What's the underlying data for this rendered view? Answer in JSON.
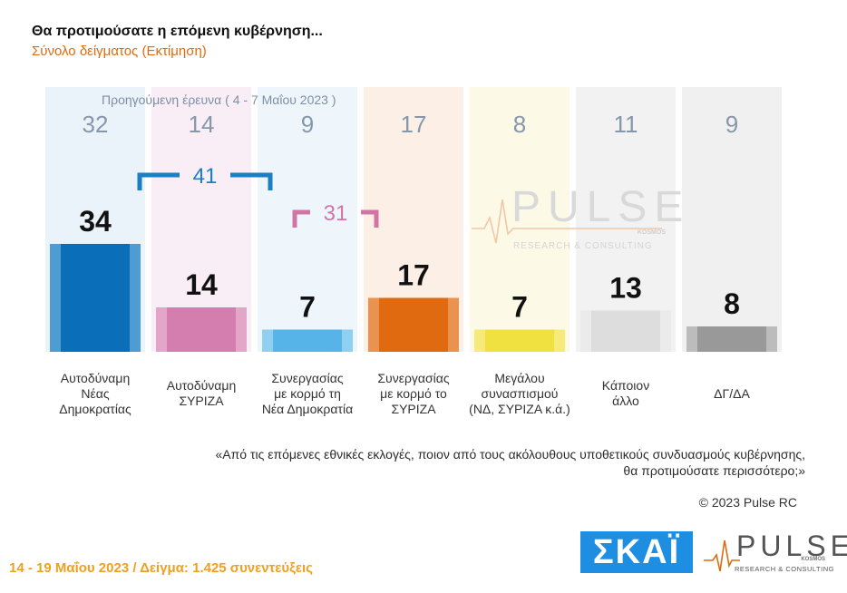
{
  "header": {
    "title": "Θα προτιμούσατε η επόμενη κυβέρνηση...",
    "subtitle": "Σύνολο δείγματος  (Εκτίμηση)"
  },
  "colors": {
    "accent_orange": "#e06a10",
    "footer_orange": "#f0a020",
    "bracket_blue": "#1a7fc4",
    "bracket_pink": "#d275a6",
    "skai_blue": "#1d8ee2"
  },
  "chart_data": {
    "type": "bar",
    "previous_label": "Προηγούμενη έρευνα  ( 4 - 7 Μαΐου  2023 )",
    "categories": [
      [
        "Αυτοδύναμη",
        "Νέας",
        "Δημοκρατίας"
      ],
      [
        "Αυτοδύναμη",
        "ΣΥΡΙΖΑ"
      ],
      [
        "Συνεργασίας",
        "με κορμό τη",
        "Νέα Δημοκρατία"
      ],
      [
        "Συνεργασίας",
        "με κορμό το",
        "ΣΥΡΙΖΑ"
      ],
      [
        "Μεγάλου",
        "συνασπισμού",
        "(ΝΔ, ΣΥΡΙΖΑ κ.ά.)"
      ],
      [
        "Κάποιον",
        "άλλο"
      ],
      [
        "ΔΓ/ΔΑ"
      ]
    ],
    "values": [
      34,
      14,
      7,
      17,
      7,
      13,
      8
    ],
    "previous_values": [
      32,
      14,
      9,
      17,
      8,
      11,
      9
    ],
    "bar_colors": [
      "#0a6fb8",
      "#d47eaf",
      "#56b4e9",
      "#e06a10",
      "#f0e040",
      "#dddddd",
      "#999999"
    ],
    "bar_edge_colors": [
      "#4f9cd2",
      "#e3a6c8",
      "#8fcff1",
      "#ea9350",
      "#f5ea7a",
      "#ebebeb",
      "#bcbcbc"
    ],
    "panel_colors": [
      "#eaf2fa",
      "#f9eef5",
      "#eef6fc",
      "#fcf0e6",
      "#fcfae6",
      "#f2f2f2",
      "#f0f0f0"
    ],
    "brackets": [
      {
        "value": "41",
        "from": 0,
        "to": 2,
        "color": "#1a7fc4"
      },
      {
        "value": "31",
        "from": 2,
        "to": 3,
        "color": "#d275a6"
      }
    ],
    "ylim": [
      0,
      40
    ]
  },
  "watermark": {
    "word": "PULSE",
    "kosmos": "KOSMOS",
    "sub": "RESEARCH & CONSULTING"
  },
  "question": [
    "«Από τις επόμενες εθνικές εκλογές, ποιον από τους ακόλουθους υποθετικούς συνδυασμούς κυβέρνησης,",
    "θα προτιμούσατε περισσότερο;»"
  ],
  "copyright": "© 2023 Pulse RC",
  "footer": {
    "date_sample": "14 - 19  Μαΐου  2023  /  Δείγμα:  1.425 συνεντεύξεις"
  },
  "logos": {
    "skai": "ΣΚΑΪ",
    "pulse": "PULSE",
    "pulse_kosmos": "KOSMOS",
    "pulse_sub": "RESEARCH & CONSULTING"
  }
}
